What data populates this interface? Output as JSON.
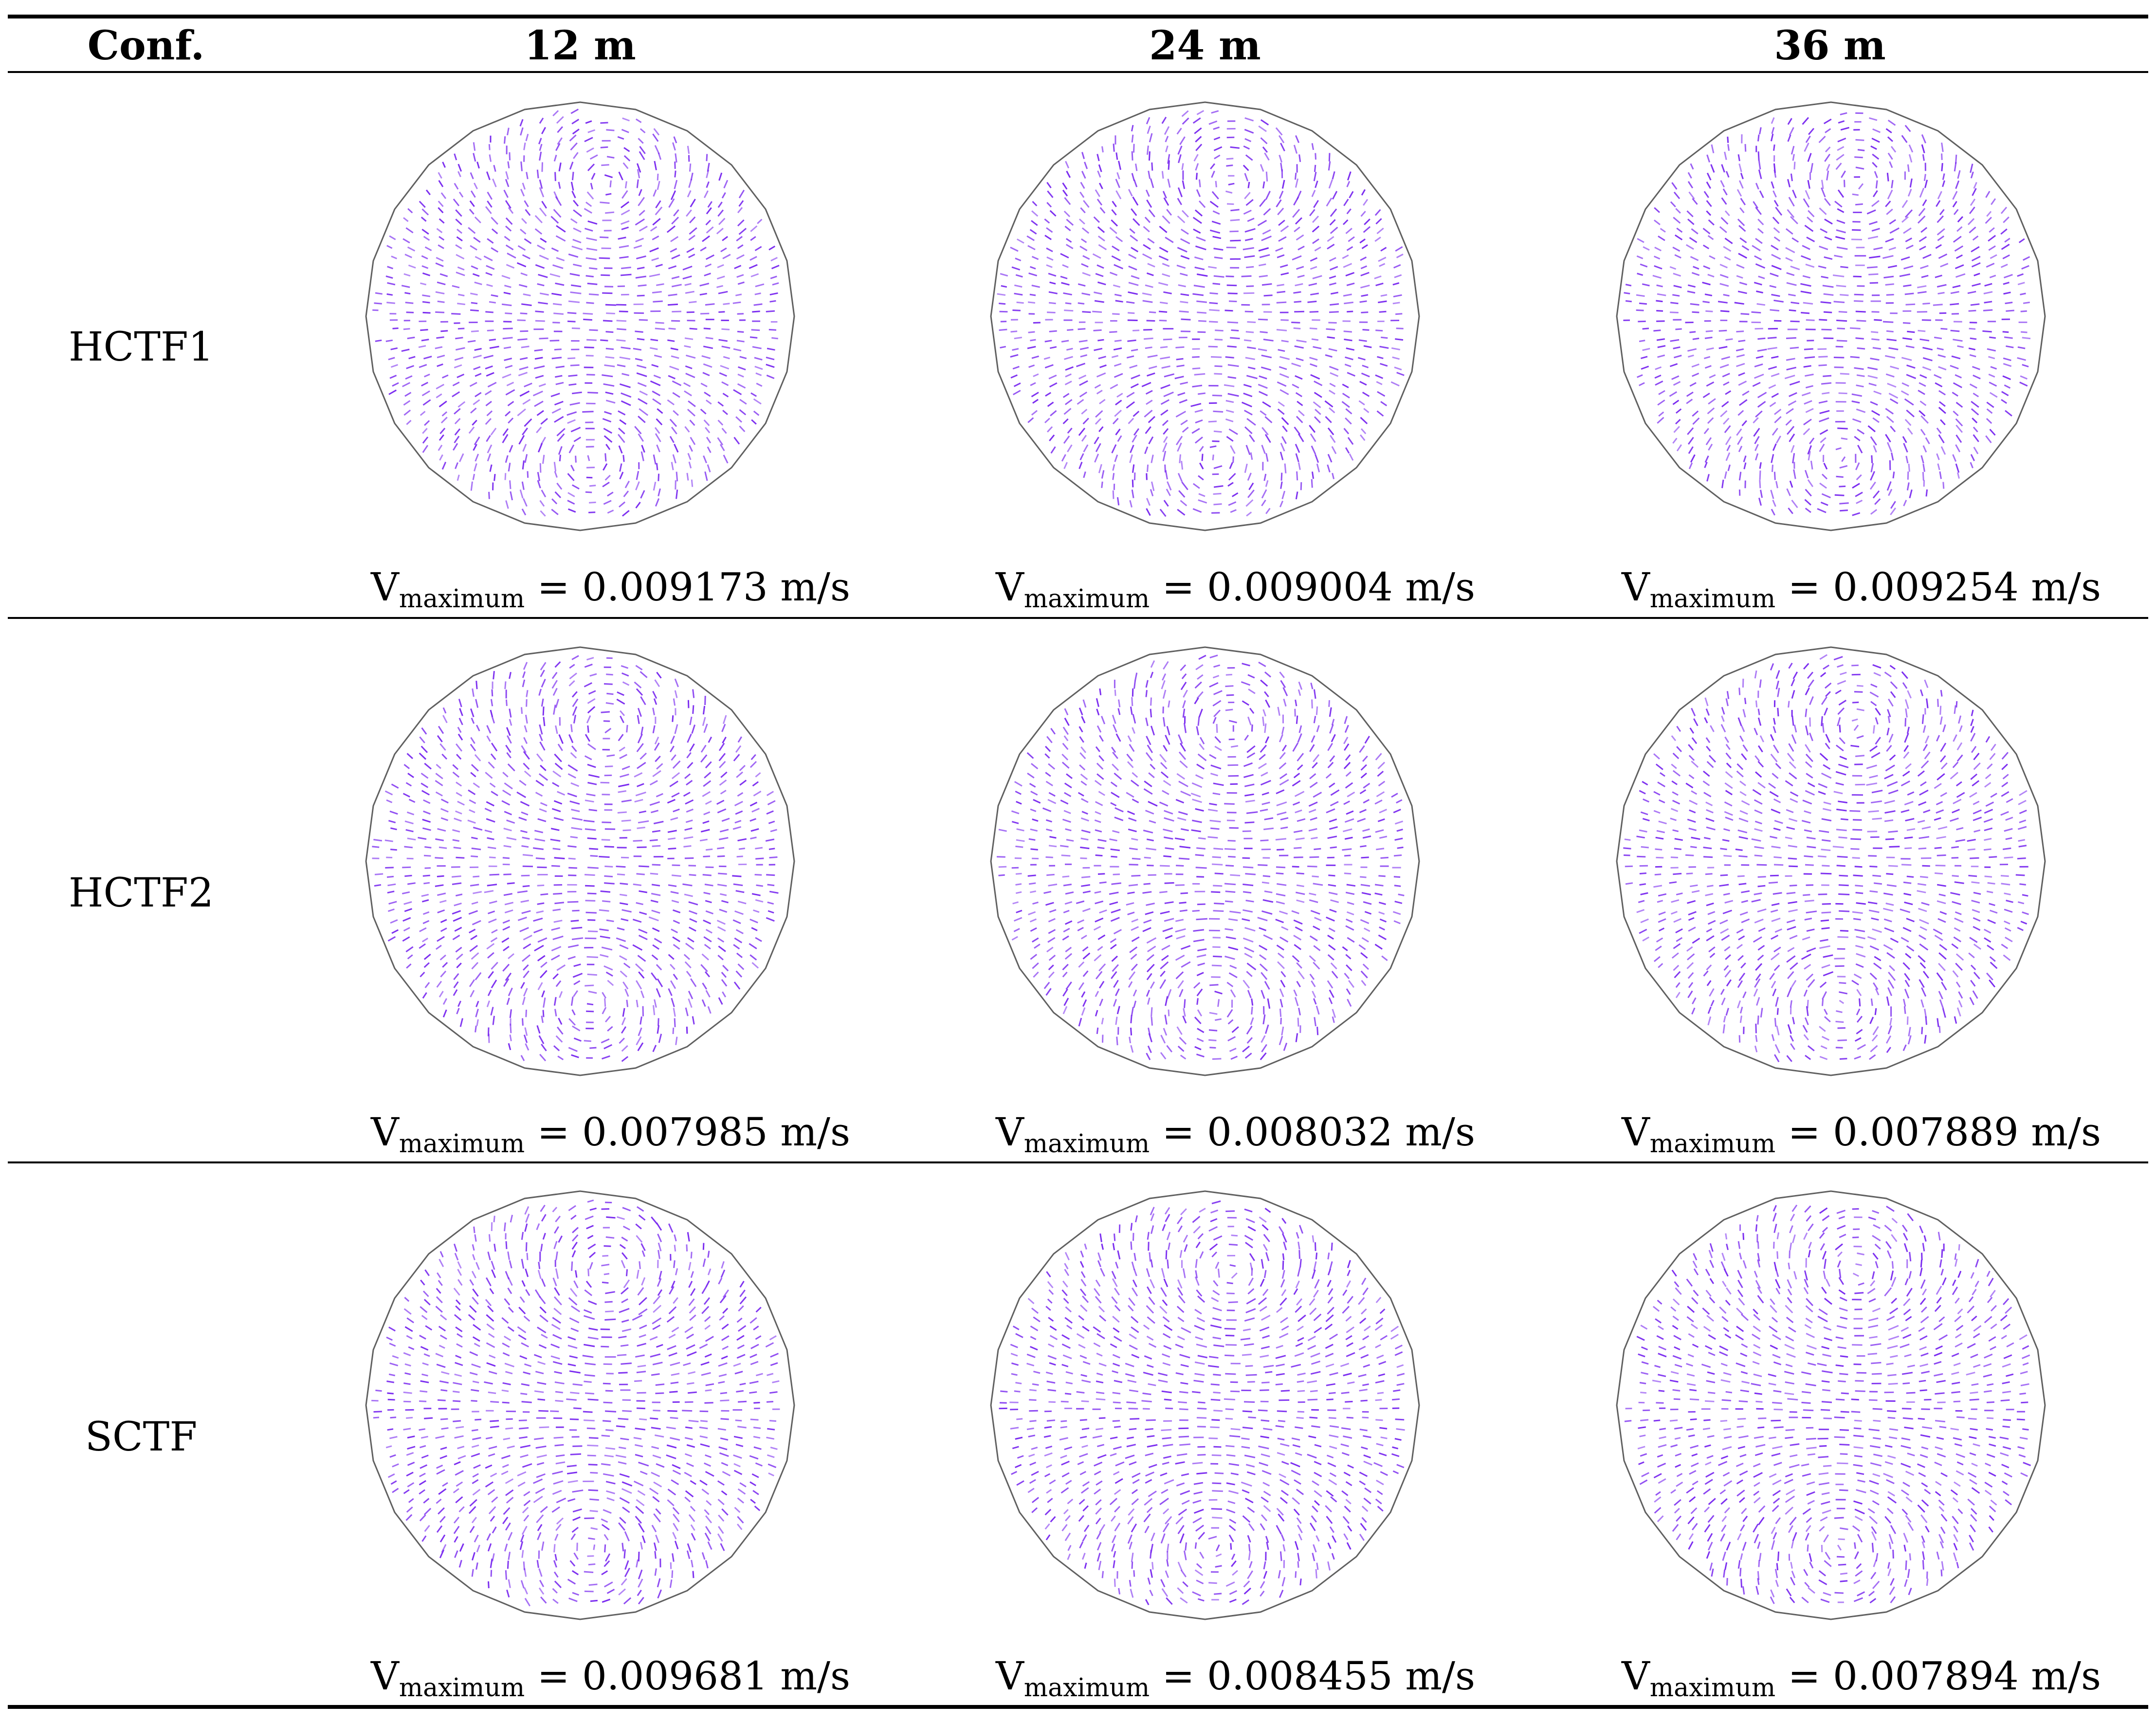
{
  "header": {
    "conf_label": "Conf.",
    "columns": [
      "12 m",
      "24 m",
      "36 m"
    ]
  },
  "rows": [
    {
      "label": "HCTF1",
      "cells": [
        {
          "v_symbol": "V",
          "v_sub": "maximum",
          "value": "= 0.009173 m/s"
        },
        {
          "v_symbol": "V",
          "v_sub": "maximum",
          "value": "= 0.009004 m/s"
        },
        {
          "v_symbol": "V",
          "v_sub": "maximum",
          "value": "= 0.009254 m/s"
        }
      ]
    },
    {
      "label": "HCTF2",
      "cells": [
        {
          "v_symbol": "V",
          "v_sub": "maximum",
          "value": "= 0.007985 m/s"
        },
        {
          "v_symbol": "V",
          "v_sub": "maximum",
          "value": "= 0.008032 m/s"
        },
        {
          "v_symbol": "V",
          "v_sub": "maximum",
          "value": "= 0.007889 m/s"
        }
      ]
    },
    {
      "label": "SCTF",
      "cells": [
        {
          "v_symbol": "V",
          "v_sub": "maximum",
          "value": "= 0.009681 m/s"
        },
        {
          "v_symbol": "V",
          "v_sub": "maximum",
          "value": "= 0.008455 m/s"
        },
        {
          "v_symbol": "V",
          "v_sub": "maximum",
          "value": "= 0.007894 m/s"
        }
      ]
    }
  ],
  "colors": {
    "vector": "#7b2cf0",
    "outline": "#606060",
    "rule": "#000000"
  }
}
